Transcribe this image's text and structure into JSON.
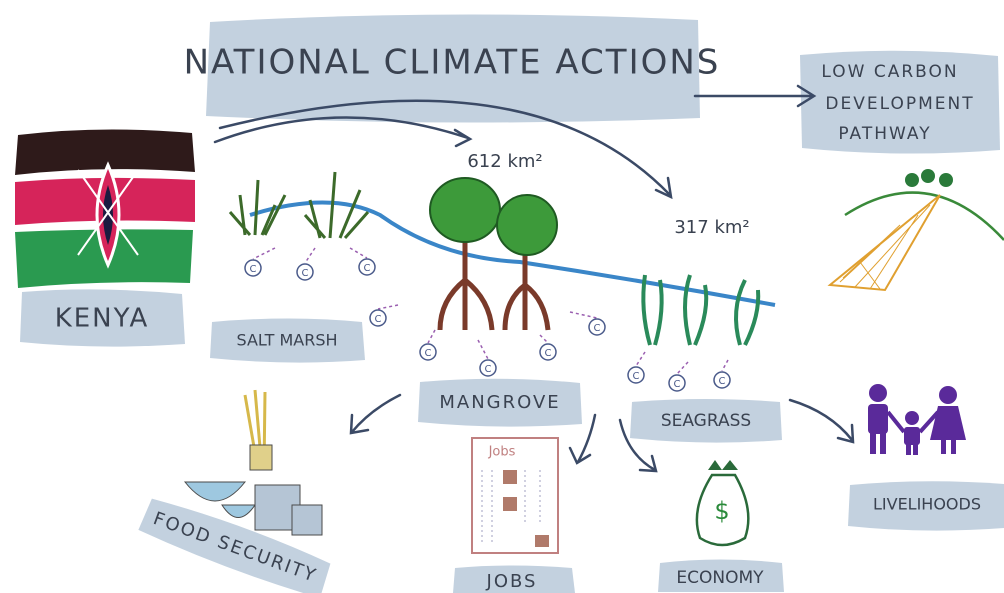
{
  "title": "NATIONAL CLIMATE ACTIONS",
  "outcome": {
    "lines": [
      "LOW CARBON",
      "DEVELOPMENT",
      "PATHWAY"
    ]
  },
  "country": "KENYA",
  "areas": [
    {
      "label": "612 km²"
    },
    {
      "label": "317 km²"
    }
  ],
  "ecosystems": [
    "SALT MARSH",
    "MANGROVE",
    "SEAGRASS"
  ],
  "benefits": [
    "FOOD SECURITY",
    "JOBS",
    "ECONOMY",
    "LIVELIHOODS"
  ],
  "icons": {
    "carbon": "C",
    "jobs": "Jobs",
    "dollar": "$"
  }
}
